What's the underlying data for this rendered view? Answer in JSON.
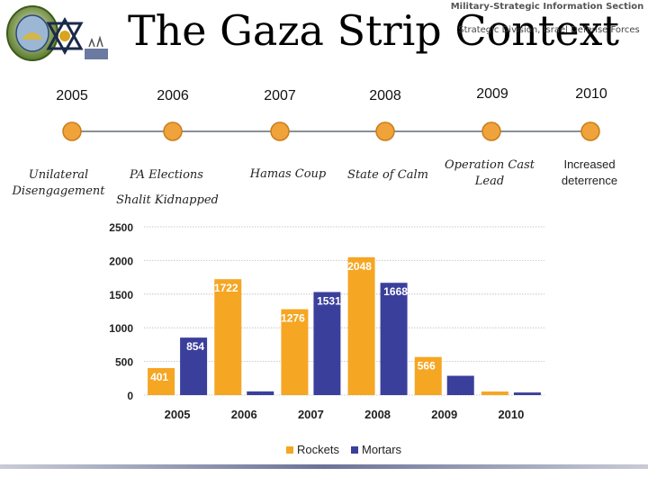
{
  "header": {
    "title": "The Gaza Strip Context",
    "section": "Military-Strategic Information Section",
    "division": "Strategic Division, Israel Defense Forces"
  },
  "timeline": {
    "years": [
      "2005",
      "2006",
      "2007",
      "2008",
      "2009",
      "2010"
    ],
    "events": {
      "e2005": [
        "Unilateral",
        "Disengagement"
      ],
      "e2006a": "PA Elections",
      "e2006b": "Shalit Kidnapped",
      "e2007": "Hamas Coup",
      "e2008": "State of Calm",
      "e2009": "Operation Cast Lead",
      "e2010": [
        "Increased",
        "deterrence"
      ]
    },
    "colors": {
      "dot": "#f0a33a",
      "line": "#8a8f96"
    }
  },
  "chart_data": {
    "type": "bar",
    "categories": [
      "2005",
      "2006",
      "2007",
      "2008",
      "2009",
      "2010"
    ],
    "series": [
      {
        "name": "Rockets",
        "values": [
          401,
          1722,
          1276,
          2048,
          566,
          53
        ],
        "color": "#f5a623"
      },
      {
        "name": "Mortars",
        "values": [
          854,
          55,
          1531,
          1668,
          287,
          39
        ],
        "color": "#3b3f9c"
      }
    ],
    "ylim": [
      0,
      2500
    ],
    "yticks": [
      0,
      500,
      1000,
      1500,
      2000,
      2500
    ],
    "grid": true,
    "legend": "bottom"
  }
}
